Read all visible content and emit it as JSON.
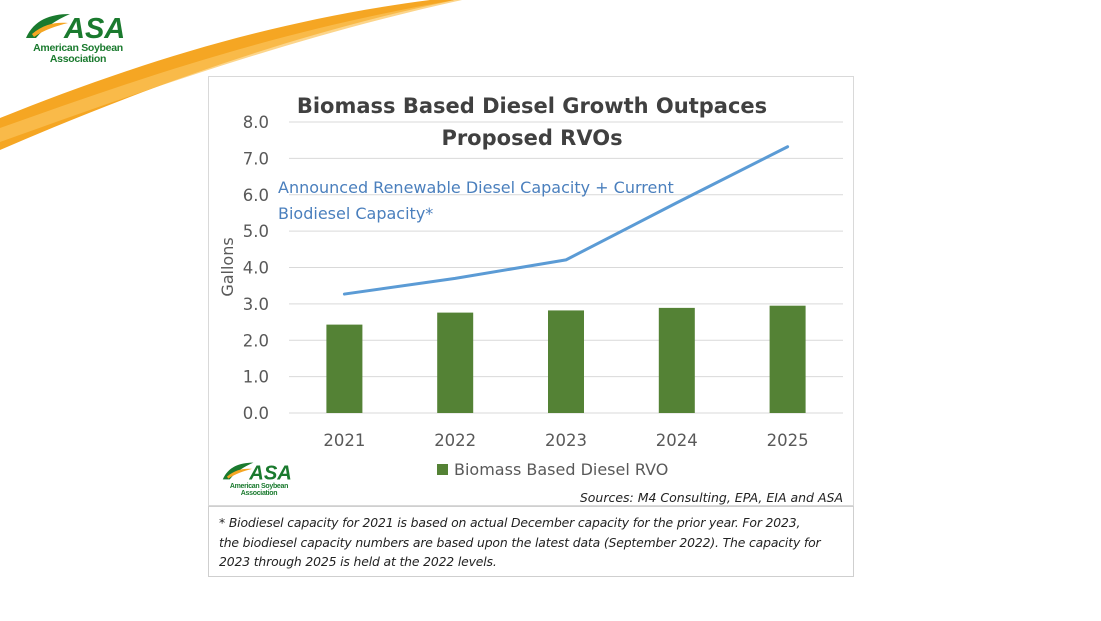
{
  "logo": {
    "acronym": "ASA",
    "name_line1": "American Soybean",
    "name_line2": "Association"
  },
  "colors": {
    "bar": "#548235",
    "line": "#5b9bd5",
    "swoosh": "#f5a623",
    "logo_green": "#1a7a2e"
  },
  "chart_data": {
    "type": "bar",
    "title_line1": "Biomass Based Diesel Growth Outpaces",
    "title_line2": "Proposed RVOs",
    "ylabel": "Gallons",
    "ylim": [
      0,
      8
    ],
    "yticks": [
      "0.0",
      "1.0",
      "2.0",
      "3.0",
      "4.0",
      "5.0",
      "6.0",
      "7.0",
      "8.0"
    ],
    "categories": [
      "2021",
      "2022",
      "2023",
      "2024",
      "2025"
    ],
    "series": [
      {
        "name": "Biomass Based Diesel RVO",
        "kind": "bar",
        "values": [
          2.43,
          2.76,
          2.82,
          2.89,
          2.95
        ]
      },
      {
        "kind": "line",
        "values": [
          3.27,
          3.7,
          4.21,
          5.78,
          7.32
        ]
      }
    ],
    "line_annotation_1": "Announced Renewable Diesel Capacity + Current",
    "line_annotation_2": "Biodiesel Capacity*",
    "legend": "bottom",
    "gridlines": true,
    "sources": "Sources: M4 Consulting, EPA, EIA and ASA"
  },
  "footnote": {
    "line1": "* Biodiesel capacity for 2021 is based on actual December capacity for the prior year. For 2023,",
    "line2": "the biodiesel capacity numbers are based upon the latest data (September 2022). The capacity for",
    "line3": "2023 through 2025 is held at the 2022 levels."
  }
}
